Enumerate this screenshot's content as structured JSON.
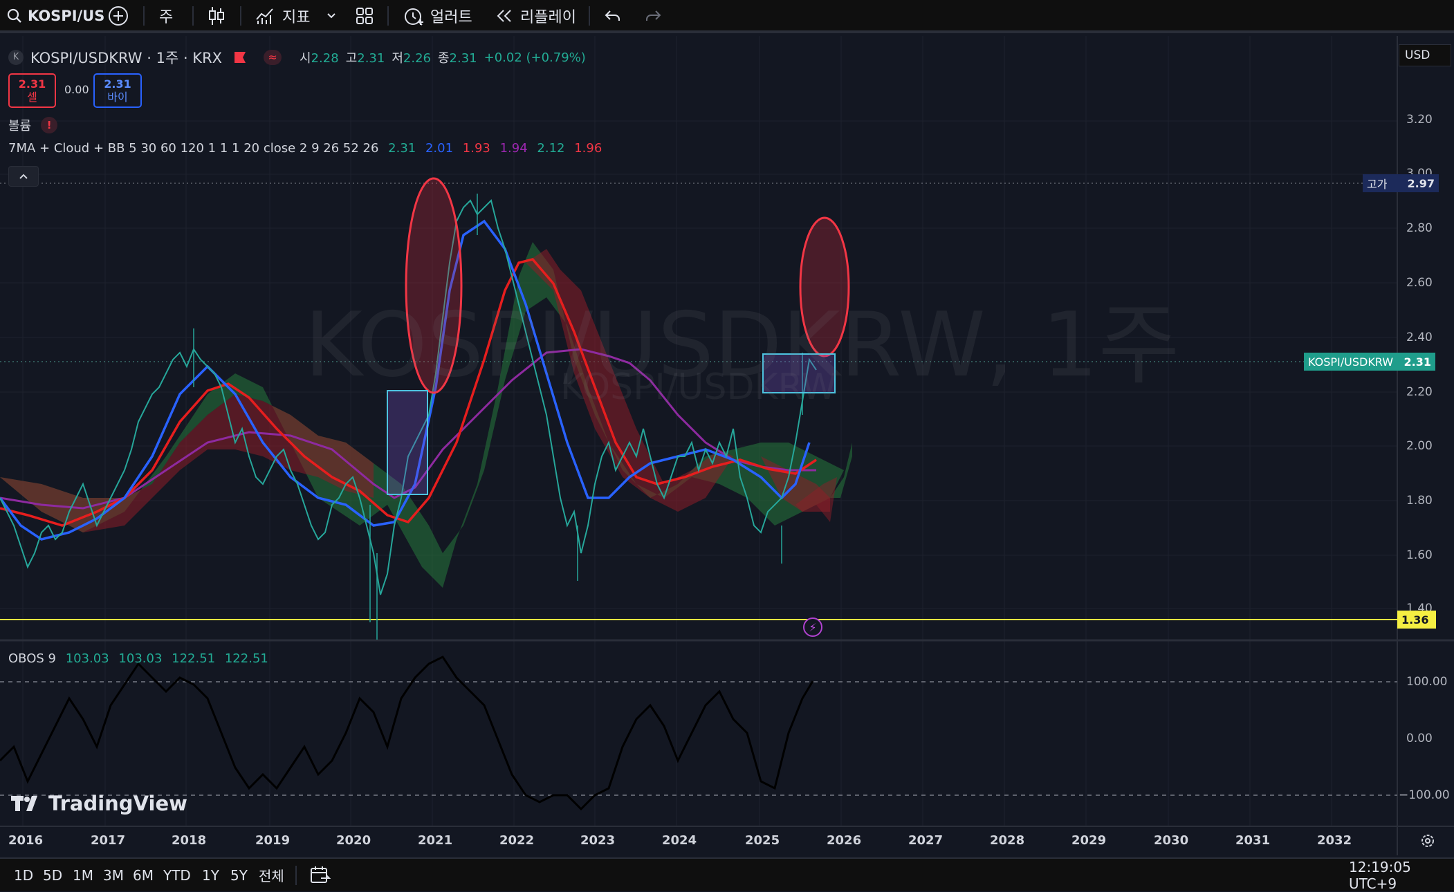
{
  "toolbar": {
    "symbol": "KOSPI/US",
    "interval": "주",
    "indicators": "지표",
    "alert": "얼러트",
    "replay": "리플레이"
  },
  "legend": {
    "symbol_title": "KOSPI/USDKRW · 1주 · KRX",
    "open_label": "시",
    "open": "2.28",
    "high_label": "고",
    "high": "2.31",
    "low_label": "저",
    "low": "2.26",
    "close_label": "종",
    "close": "2.31",
    "change": "+0.02 (+0.79%)",
    "sell_price": "2.31",
    "sell_label": "셀",
    "spread": "0.00",
    "buy_price": "2.31",
    "buy_label": "바이",
    "volume_label": "볼륨",
    "ma_name": "7MA + Cloud + BB 5 30 60 120 1 1 1 20 close 2 9 26 52 26",
    "ma_values": [
      "2.31",
      "2.01",
      "1.93",
      "1.94",
      "2.12",
      "1.96"
    ],
    "ma_colors": [
      "#22ab94",
      "#2962ff",
      "#f23645",
      "#9c27b0",
      "#22ab94",
      "#f23645"
    ]
  },
  "watermark": {
    "main": "KOSPI/USDKRW, 1주",
    "sub": "KOSPI/USDKRW"
  },
  "price_axis": {
    "currency": "USD",
    "ticks": [
      "3.20",
      "3.00",
      "2.80",
      "2.60",
      "2.40",
      "2.20",
      "2.00",
      "1.80",
      "1.60",
      "1.40"
    ],
    "high_tag_label": "고가",
    "high_tag_value": "2.97",
    "last_tag_label": "KOSPI/USDKRW",
    "last_tag_value": "2.31",
    "low_tag_value": "1.36"
  },
  "oscillator": {
    "name": "OBOS 9",
    "values": [
      "103.03",
      "103.03",
      "122.51",
      "122.51"
    ],
    "ticks": [
      "100.00",
      "0.00",
      "−100.00"
    ]
  },
  "time_axis": [
    "2016",
    "2017",
    "2018",
    "2019",
    "2020",
    "2021",
    "2022",
    "2023",
    "2024",
    "2025",
    "2026",
    "2027",
    "2028",
    "2029",
    "2030",
    "2031",
    "2032"
  ],
  "brand": "TradingView",
  "bottombar": {
    "ranges": [
      "1D",
      "5D",
      "1M",
      "3M",
      "6M",
      "YTD",
      "1Y",
      "5Y",
      "전체"
    ],
    "clock": "12:19:05 UTC+9"
  },
  "colors": {
    "up": "#22ab94",
    "down": "#f23645",
    "ma_blue": "#2962ff",
    "ma_red": "#e61e1e",
    "ma_purple": "#8e2aa0",
    "bg": "#131722"
  }
}
